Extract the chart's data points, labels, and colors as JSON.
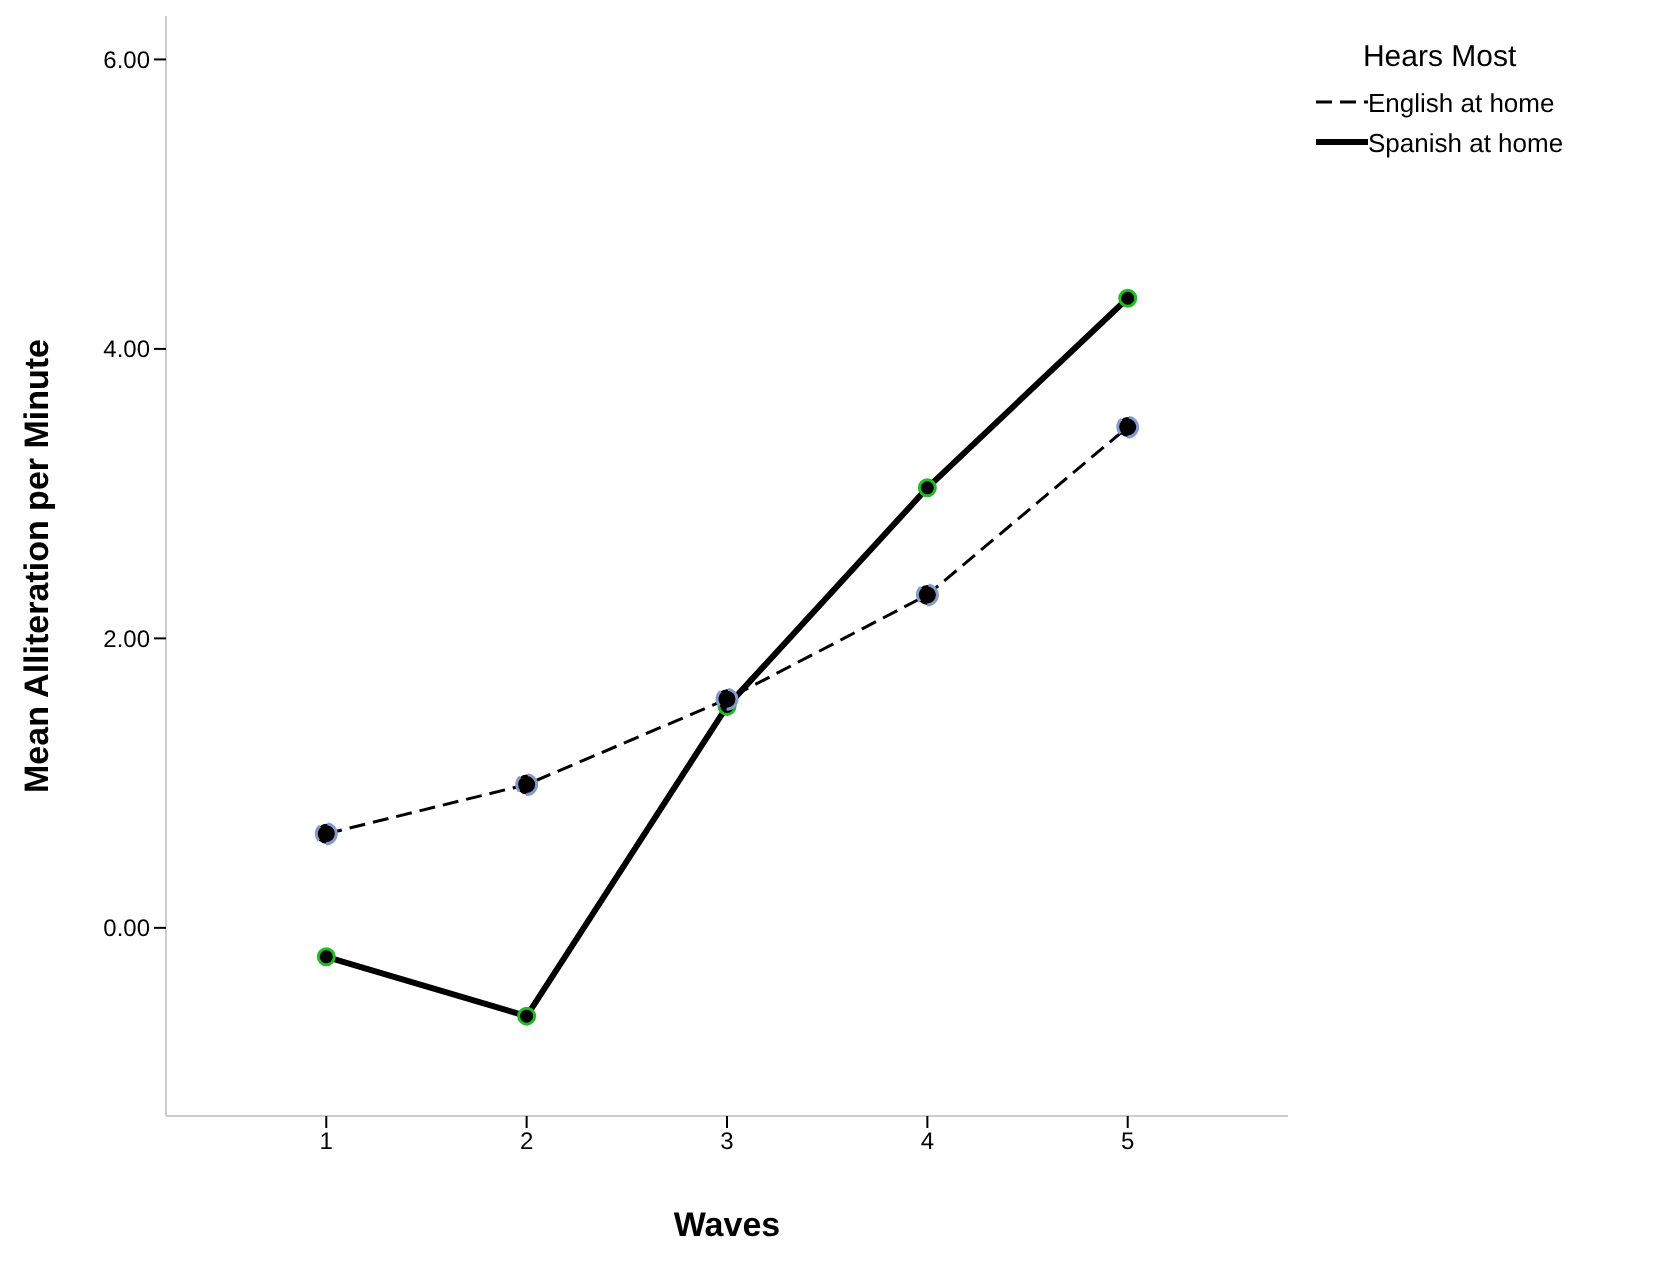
{
  "chart_data": {
    "type": "line",
    "xlabel": "Waves",
    "ylabel": "Mean Alliteration per Minute",
    "legend_title": "Hears Most",
    "x": [
      1,
      2,
      3,
      4,
      5
    ],
    "series": [
      {
        "name": "English at home",
        "color": "#000000",
        "line_style": "dashed",
        "values": [
          0.65,
          0.99,
          1.58,
          2.3,
          3.46
        ]
      },
      {
        "name": "Spanish at home",
        "color": "#000000",
        "line_style": "solid",
        "values": [
          -0.2,
          -0.61,
          1.53,
          3.04,
          4.35
        ]
      }
    ],
    "xlim": [
      0.2,
      5.8
    ],
    "xticks": [
      1,
      2,
      3,
      4,
      5
    ],
    "ylim": [
      -1.3,
      6.3
    ],
    "yticks": [
      {
        "value": 0,
        "label": "0.00"
      },
      {
        "value": 2,
        "label": "2.00"
      },
      {
        "value": 4,
        "label": "4.00"
      },
      {
        "value": 6,
        "label": "6.00"
      }
    ],
    "grid": false,
    "legend": "top right",
    "marker": "circle"
  }
}
